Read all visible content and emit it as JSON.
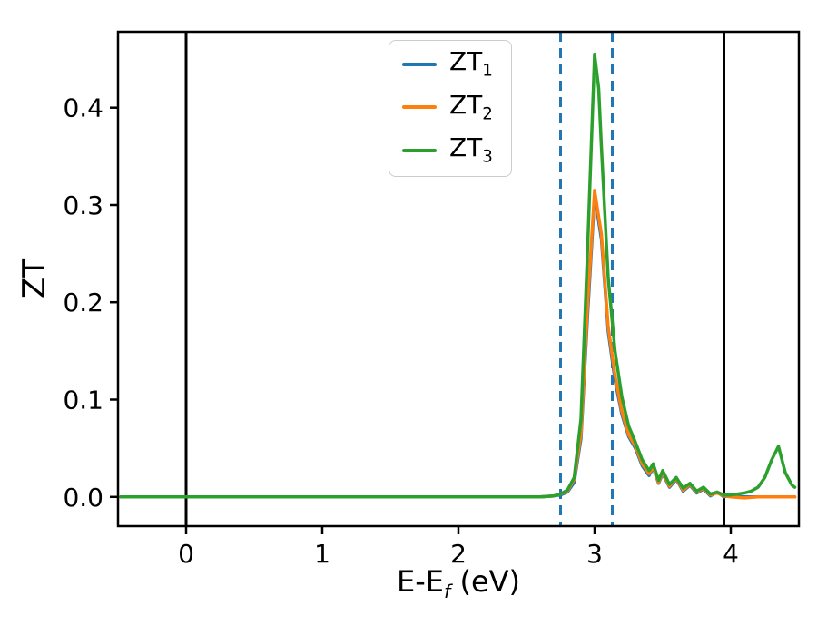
{
  "figure": {
    "background": "#ffffff",
    "ylabel": "ZT",
    "xlabel": {
      "pre": "E-E",
      "sub": "f",
      "post": " (eV)"
    }
  },
  "legend": {
    "items": [
      {
        "label": "ZT",
        "sub": "1",
        "color": "#1f77b4"
      },
      {
        "label": "ZT",
        "sub": "2",
        "color": "#ff7f0e"
      },
      {
        "label": "ZT",
        "sub": "3",
        "color": "#2ca02c"
      }
    ]
  },
  "chart_data": {
    "type": "line",
    "title": "",
    "xlabel": "E-E_f (eV)",
    "ylabel": "ZT",
    "xlim": [
      -0.5,
      4.5
    ],
    "ylim": [
      -0.03,
      0.478
    ],
    "xticks": [
      0,
      1,
      2,
      3,
      4
    ],
    "xtick_labels": [
      "0",
      "1",
      "2",
      "3",
      "4"
    ],
    "yticks": [
      0.0,
      0.1,
      0.2,
      0.3,
      0.4
    ],
    "ytick_labels": [
      "0.0",
      "0.1",
      "0.2",
      "0.3",
      "0.4"
    ],
    "grid": false,
    "legend_position": "upper center",
    "legend_entries": [
      "ZT_1",
      "ZT_2",
      "ZT_3"
    ],
    "vlines": [
      {
        "name": "solid-vline-left",
        "x": 0.0,
        "style": "solid",
        "color": "#000000",
        "width": 3
      },
      {
        "name": "solid-vline-right",
        "x": 3.95,
        "style": "solid",
        "color": "#000000",
        "width": 3
      },
      {
        "name": "dashed-vline-left",
        "x": 2.75,
        "style": "dashed",
        "color": "#1f77b4",
        "width": 3
      },
      {
        "name": "dashed-vline-right",
        "x": 3.13,
        "style": "dashed",
        "color": "#1f77b4",
        "width": 3
      }
    ],
    "series": [
      {
        "name": "ZT_1",
        "id": "zt1",
        "color": "#1f77b4",
        "points": [
          [
            -0.48,
            0.0
          ],
          [
            0.0,
            0.0
          ],
          [
            0.5,
            0.0
          ],
          [
            1.0,
            0.0
          ],
          [
            1.5,
            0.0
          ],
          [
            2.0,
            0.0
          ],
          [
            2.5,
            0.0
          ],
          [
            2.6,
            0.0
          ],
          [
            2.7,
            0.001
          ],
          [
            2.75,
            0.002
          ],
          [
            2.8,
            0.005
          ],
          [
            2.85,
            0.015
          ],
          [
            2.9,
            0.06
          ],
          [
            2.95,
            0.19
          ],
          [
            3.0,
            0.31
          ],
          [
            3.05,
            0.265
          ],
          [
            3.1,
            0.17
          ],
          [
            3.15,
            0.12
          ],
          [
            3.2,
            0.085
          ],
          [
            3.25,
            0.062
          ],
          [
            3.3,
            0.05
          ],
          [
            3.35,
            0.032
          ],
          [
            3.4,
            0.022
          ],
          [
            3.43,
            0.03
          ],
          [
            3.47,
            0.014
          ],
          [
            3.5,
            0.024
          ],
          [
            3.55,
            0.01
          ],
          [
            3.6,
            0.018
          ],
          [
            3.65,
            0.006
          ],
          [
            3.7,
            0.012
          ],
          [
            3.75,
            0.004
          ],
          [
            3.8,
            0.008
          ],
          [
            3.85,
            0.001
          ],
          [
            3.9,
            0.005
          ],
          [
            3.95,
            0.0
          ],
          [
            4.0,
            0.002
          ],
          [
            4.05,
            0.0
          ],
          [
            4.1,
            0.0
          ],
          [
            4.2,
            0.0
          ],
          [
            4.3,
            0.0
          ],
          [
            4.4,
            0.0
          ],
          [
            4.47,
            0.0
          ]
        ]
      },
      {
        "name": "ZT_2",
        "id": "zt2",
        "color": "#ff7f0e",
        "points": [
          [
            -0.48,
            0.0
          ],
          [
            0.0,
            0.0
          ],
          [
            0.5,
            0.0
          ],
          [
            1.0,
            0.0
          ],
          [
            1.5,
            0.0
          ],
          [
            2.0,
            0.0
          ],
          [
            2.5,
            0.0
          ],
          [
            2.6,
            0.0
          ],
          [
            2.7,
            0.001
          ],
          [
            2.75,
            0.003
          ],
          [
            2.8,
            0.006
          ],
          [
            2.85,
            0.018
          ],
          [
            2.9,
            0.065
          ],
          [
            2.95,
            0.2
          ],
          [
            3.0,
            0.315
          ],
          [
            3.05,
            0.27
          ],
          [
            3.1,
            0.175
          ],
          [
            3.15,
            0.125
          ],
          [
            3.2,
            0.088
          ],
          [
            3.25,
            0.064
          ],
          [
            3.3,
            0.052
          ],
          [
            3.35,
            0.034
          ],
          [
            3.4,
            0.024
          ],
          [
            3.43,
            0.031
          ],
          [
            3.47,
            0.015
          ],
          [
            3.5,
            0.025
          ],
          [
            3.55,
            0.011
          ],
          [
            3.6,
            0.019
          ],
          [
            3.65,
            0.007
          ],
          [
            3.7,
            0.013
          ],
          [
            3.75,
            0.005
          ],
          [
            3.8,
            0.009
          ],
          [
            3.85,
            0.002
          ],
          [
            3.9,
            0.004
          ],
          [
            3.95,
            0.001
          ],
          [
            4.0,
            0.0
          ],
          [
            4.1,
            -0.001
          ],
          [
            4.2,
            0.0
          ],
          [
            4.3,
            0.0
          ],
          [
            4.4,
            0.0
          ],
          [
            4.47,
            0.0
          ]
        ]
      },
      {
        "name": "ZT_3",
        "id": "zt3",
        "color": "#2ca02c",
        "points": [
          [
            -0.48,
            0.0
          ],
          [
            0.0,
            0.0
          ],
          [
            0.5,
            0.0
          ],
          [
            1.0,
            0.0
          ],
          [
            1.5,
            0.0
          ],
          [
            2.0,
            0.0
          ],
          [
            2.5,
            0.0
          ],
          [
            2.6,
            0.0
          ],
          [
            2.7,
            0.001
          ],
          [
            2.75,
            0.003
          ],
          [
            2.8,
            0.007
          ],
          [
            2.85,
            0.02
          ],
          [
            2.9,
            0.08
          ],
          [
            2.95,
            0.26
          ],
          [
            3.0,
            0.455
          ],
          [
            3.03,
            0.42
          ],
          [
            3.05,
            0.36
          ],
          [
            3.1,
            0.225
          ],
          [
            3.15,
            0.15
          ],
          [
            3.2,
            0.103
          ],
          [
            3.25,
            0.073
          ],
          [
            3.3,
            0.056
          ],
          [
            3.35,
            0.038
          ],
          [
            3.4,
            0.027
          ],
          [
            3.43,
            0.034
          ],
          [
            3.47,
            0.017
          ],
          [
            3.5,
            0.027
          ],
          [
            3.55,
            0.013
          ],
          [
            3.6,
            0.02
          ],
          [
            3.65,
            0.009
          ],
          [
            3.7,
            0.014
          ],
          [
            3.75,
            0.006
          ],
          [
            3.8,
            0.01
          ],
          [
            3.85,
            0.003
          ],
          [
            3.9,
            0.005
          ],
          [
            3.95,
            0.002
          ],
          [
            4.0,
            0.002
          ],
          [
            4.05,
            0.003
          ],
          [
            4.1,
            0.004
          ],
          [
            4.15,
            0.006
          ],
          [
            4.2,
            0.01
          ],
          [
            4.25,
            0.02
          ],
          [
            4.3,
            0.038
          ],
          [
            4.35,
            0.052
          ],
          [
            4.4,
            0.025
          ],
          [
            4.45,
            0.012
          ],
          [
            4.47,
            0.01
          ]
        ]
      }
    ]
  }
}
